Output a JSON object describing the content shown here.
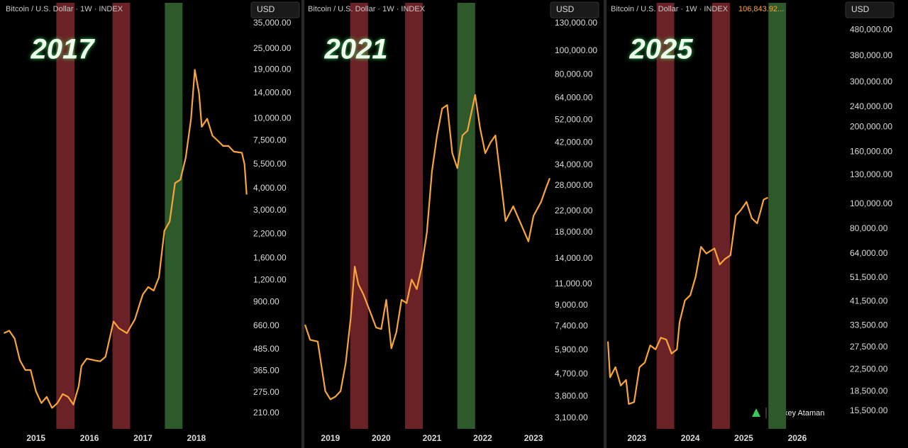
{
  "chart_data": [
    {
      "type": "line",
      "title": "Bitcoin / U.S. Dollar · 1W · INDEX",
      "annotation": "2017",
      "currency": "USD",
      "log_scale": true,
      "x": [
        2014.4,
        2014.5,
        2014.6,
        2014.7,
        2014.8,
        2014.9,
        2015.0,
        2015.1,
        2015.2,
        2015.3,
        2015.4,
        2015.5,
        2015.6,
        2015.7,
        2015.8,
        2015.85,
        2015.95,
        2016.1,
        2016.2,
        2016.3,
        2016.45,
        2016.55,
        2016.7,
        2016.85,
        2016.95,
        2017.0,
        2017.1,
        2017.2,
        2017.3,
        2017.4,
        2017.5,
        2017.6,
        2017.7,
        2017.8,
        2017.9,
        2017.97,
        2018.05,
        2018.1,
        2018.2,
        2018.3,
        2018.4,
        2018.5,
        2018.6,
        2018.7,
        2018.85,
        2018.9,
        2018.94
      ],
      "series": [
        {
          "color": "#f7a53a",
          "values": [
            600,
            620,
            560,
            420,
            370,
            370,
            280,
            240,
            260,
            225,
            240,
            270,
            260,
            235,
            300,
            390,
            430,
            420,
            415,
            440,
            700,
            640,
            600,
            720,
            900,
            1000,
            1100,
            1050,
            1250,
            2300,
            2600,
            4300,
            4500,
            6000,
            10000,
            19000,
            14000,
            9000,
            10000,
            8000,
            7500,
            7000,
            7000,
            6500,
            6400,
            5500,
            3700
          ]
        }
      ],
      "xlim": [
        2014.38,
        2018.97
      ],
      "xticks": [
        2015,
        2016,
        2017,
        2018
      ],
      "ylim": [
        171,
        47500
      ],
      "yticks": [
        {
          "value": 35000,
          "label": "35,000.00"
        },
        {
          "value": 25000,
          "label": "25,000.00"
        },
        {
          "value": 19000,
          "label": "19,000.00"
        },
        {
          "value": 14000,
          "label": "14,000.00"
        },
        {
          "value": 10000,
          "label": "10,000.00"
        },
        {
          "value": 7500,
          "label": "7,500.00"
        },
        {
          "value": 5500,
          "label": "5,500.00"
        },
        {
          "value": 4000,
          "label": "4,000.00"
        },
        {
          "value": 3000,
          "label": "3,000.00"
        },
        {
          "value": 2200,
          "label": "2,200.00"
        },
        {
          "value": 1600,
          "label": "1,600.00"
        },
        {
          "value": 1200,
          "label": "1,200.00"
        },
        {
          "value": 900,
          "label": "900.00"
        },
        {
          "value": 660,
          "label": "660.00"
        },
        {
          "value": 485,
          "label": "485.00"
        },
        {
          "value": 365,
          "label": "365.00"
        },
        {
          "value": 275,
          "label": "275.00"
        },
        {
          "value": 210,
          "label": "210.00"
        }
      ],
      "bands": [
        {
          "x": [
            2015.38,
            2015.72
          ],
          "color": "#6b2226"
        },
        {
          "x": [
            2016.43,
            2016.76
          ],
          "color": "#6b2226"
        },
        {
          "x": [
            2017.41,
            2017.74
          ],
          "color": "#2e5a2b"
        }
      ]
    },
    {
      "type": "line",
      "title": "Bitcoin / U.S. Dollar · 1W · INDEX",
      "annotation": "2021",
      "currency": "USD",
      "log_scale": true,
      "x": [
        2018.5,
        2018.6,
        2018.75,
        2018.9,
        2019.0,
        2019.1,
        2019.2,
        2019.3,
        2019.4,
        2019.48,
        2019.55,
        2019.65,
        2019.8,
        2019.9,
        2020.0,
        2020.1,
        2020.2,
        2020.3,
        2020.4,
        2020.5,
        2020.6,
        2020.7,
        2020.8,
        2020.9,
        2021.0,
        2021.1,
        2021.2,
        2021.3,
        2021.4,
        2021.5,
        2021.6,
        2021.7,
        2021.85,
        2021.95,
        2022.05,
        2022.15,
        2022.25,
        2022.35,
        2022.45,
        2022.6,
        2022.75,
        2022.9,
        2023.0,
        2023.15,
        2023.25,
        2023.32
      ],
      "series": [
        {
          "color": "#f7a53a",
          "values": [
            7500,
            6500,
            6400,
            4000,
            3700,
            3800,
            4000,
            5200,
            8000,
            13000,
            11000,
            10000,
            8300,
            7300,
            7200,
            9500,
            6000,
            7000,
            9500,
            9200,
            11500,
            10500,
            13000,
            18000,
            32000,
            45000,
            58000,
            60000,
            38000,
            33000,
            45000,
            47000,
            66000,
            48000,
            38000,
            42000,
            45000,
            30000,
            20000,
            23000,
            19500,
            16500,
            21000,
            24000,
            27500,
            30000
          ]
        }
      ],
      "xlim": [
        2018.5,
        2023.32
      ],
      "xticks": [
        2019,
        2020,
        2021,
        2022,
        2023
      ],
      "ylim": [
        2800,
        162000
      ],
      "yticks": [
        {
          "value": 130000,
          "label": "130,000.00"
        },
        {
          "value": 100000,
          "label": "100,000.00"
        },
        {
          "value": 80000,
          "label": "80,000.00"
        },
        {
          "value": 64000,
          "label": "64,000.00"
        },
        {
          "value": 52000,
          "label": "52,000.00"
        },
        {
          "value": 42000,
          "label": "42,000.00"
        },
        {
          "value": 34000,
          "label": "34,000.00"
        },
        {
          "value": 28000,
          "label": "28,000.00"
        },
        {
          "value": 22000,
          "label": "22,000.00"
        },
        {
          "value": 18000,
          "label": "18,000.00"
        },
        {
          "value": 14000,
          "label": "14,000.00"
        },
        {
          "value": 11000,
          "label": "11,000.00"
        },
        {
          "value": 9000,
          "label": "9,000.00"
        },
        {
          "value": 7400,
          "label": "7,400.00"
        },
        {
          "value": 5900,
          "label": "5,900.00"
        },
        {
          "value": 4700,
          "label": "4,700.00"
        },
        {
          "value": 3800,
          "label": "3,800.00"
        },
        {
          "value": 3100,
          "label": "3,100.00"
        }
      ],
      "bands": [
        {
          "x": [
            2019.39,
            2019.74
          ],
          "color": "#6b2226"
        },
        {
          "x": [
            2020.47,
            2020.82
          ],
          "color": "#6b2226"
        },
        {
          "x": [
            2021.5,
            2021.85
          ],
          "color": "#2e5a2b"
        }
      ]
    },
    {
      "type": "line",
      "title": "Bitcoin / U.S. Dollar · 1W · INDEX",
      "last_value_label": "106,843.92...",
      "annotation": "2025",
      "currency": "USD",
      "log_scale": true,
      "x": [
        2022.46,
        2022.5,
        2022.6,
        2022.7,
        2022.8,
        2022.85,
        2022.95,
        2023.05,
        2023.15,
        2023.25,
        2023.35,
        2023.45,
        2023.55,
        2023.65,
        2023.75,
        2023.8,
        2023.9,
        2024.0,
        2024.1,
        2024.2,
        2024.3,
        2024.45,
        2024.55,
        2024.65,
        2024.75,
        2024.85,
        2024.95,
        2025.05,
        2025.15,
        2025.25,
        2025.32,
        2025.37,
        2025.45
      ],
      "series": [
        {
          "color": "#f7a53a",
          "values": [
            29000,
            21000,
            23000,
            19500,
            20500,
            16500,
            16800,
            23000,
            24000,
            28000,
            27000,
            30000,
            29500,
            26000,
            27000,
            34500,
            42000,
            44000,
            52000,
            68000,
            64000,
            67000,
            58000,
            61000,
            63000,
            90000,
            95000,
            102000,
            88000,
            84000,
            95000,
            104000,
            106000
          ]
        }
      ],
      "xlim": [
        2022.46,
        2026.81
      ],
      "xticks": [
        2023,
        2024,
        2025,
        2026
      ],
      "ylim": [
        13200,
        628000
      ],
      "yticks": [
        {
          "value": 480000,
          "label": "480,000.00"
        },
        {
          "value": 380000,
          "label": "380,000.00"
        },
        {
          "value": 300000,
          "label": "300,000.00"
        },
        {
          "value": 240000,
          "label": "240,000.00"
        },
        {
          "value": 200000,
          "label": "200,000.00"
        },
        {
          "value": 160000,
          "label": "160,000.00"
        },
        {
          "value": 130000,
          "label": "130,000.00"
        },
        {
          "value": 100000,
          "label": "100,000.00"
        },
        {
          "value": 80000,
          "label": "80,000.00"
        },
        {
          "value": 64000,
          "label": "64,000.00"
        },
        {
          "value": 51500,
          "label": "51,500.00"
        },
        {
          "value": 41500,
          "label": "41,500.00"
        },
        {
          "value": 33500,
          "label": "33,500.00"
        },
        {
          "value": 27500,
          "label": "27,500.00"
        },
        {
          "value": 22500,
          "label": "22,500.00"
        },
        {
          "value": 18500,
          "label": "18,500.00"
        },
        {
          "value": 15500,
          "label": "15,500.00"
        }
      ],
      "bands": [
        {
          "x": [
            2023.37,
            2023.7
          ],
          "color": "#6b2226"
        },
        {
          "x": [
            2024.41,
            2024.74
          ],
          "color": "#6b2226"
        },
        {
          "x": [
            2025.46,
            2025.79
          ],
          "color": "#2e5a2b"
        }
      ]
    }
  ],
  "watermark": "Alexey Ataman"
}
